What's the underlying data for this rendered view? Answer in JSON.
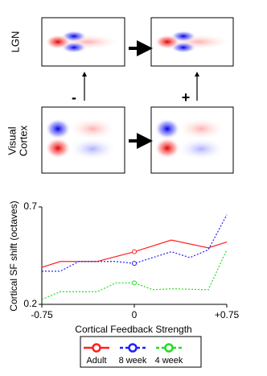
{
  "diagram": {
    "lgn_label": "LGN",
    "cortex_label_line1": "Visual",
    "cortex_label_line2": "Cortex",
    "minus_label": "-",
    "plus_label": "+"
  },
  "chart_data": {
    "type": "line",
    "y_label": "Cortical SF shift (octaves)",
    "x_label": "Cortical Feedback Strength",
    "xlim": [
      -0.75,
      0.75
    ],
    "xticks": [
      -0.75,
      0,
      {
        "value": 0.75,
        "label": "+0.75"
      }
    ],
    "ylim": [
      0.2,
      0.7
    ],
    "yticks": [
      0.2,
      0.7
    ],
    "highlight_x": 0,
    "series": [
      {
        "name": "Adult",
        "color": "#ff2020",
        "dash": "solid",
        "x": [
          -0.75,
          -0.6,
          -0.3,
          0,
          0.3,
          0.6,
          0.75
        ],
        "values": [
          0.39,
          0.42,
          0.42,
          0.47,
          0.53,
          0.49,
          0.52
        ]
      },
      {
        "name": "8 week",
        "color": "#2020ff",
        "dash": "dotted",
        "x": [
          -0.75,
          -0.6,
          -0.45,
          -0.15,
          0,
          0.15,
          0.3,
          0.45,
          0.6,
          0.75
        ],
        "values": [
          0.37,
          0.37,
          0.42,
          0.42,
          0.41,
          0.44,
          0.47,
          0.44,
          0.48,
          0.66
        ]
      },
      {
        "name": "4 week",
        "color": "#20e020",
        "dash": "dotted",
        "x": [
          -0.75,
          -0.6,
          -0.3,
          -0.15,
          0,
          0.15,
          0.3,
          0.6,
          0.75
        ],
        "values": [
          0.225,
          0.265,
          0.265,
          0.31,
          0.31,
          0.275,
          0.28,
          0.275,
          0.48
        ]
      }
    ]
  }
}
